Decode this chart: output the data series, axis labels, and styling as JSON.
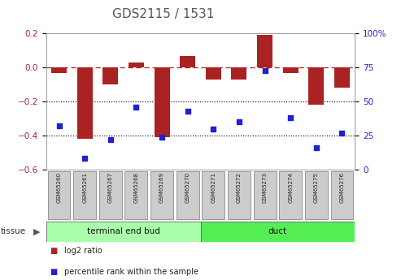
{
  "title": "GDS2115 / 1531",
  "samples": [
    "GSM65260",
    "GSM65261",
    "GSM65267",
    "GSM65268",
    "GSM65269",
    "GSM65270",
    "GSM65271",
    "GSM65272",
    "GSM65273",
    "GSM65274",
    "GSM65275",
    "GSM65276"
  ],
  "log2_ratio": [
    -0.03,
    -0.42,
    -0.1,
    0.03,
    -0.41,
    0.07,
    -0.07,
    -0.07,
    0.19,
    -0.03,
    -0.22,
    -0.12
  ],
  "percentile_rank": [
    32,
    8,
    22,
    46,
    24,
    43,
    30,
    35,
    73,
    38,
    16,
    27
  ],
  "bar_color": "#aa2222",
  "dot_color": "#2222cc",
  "ylim_left": [
    -0.6,
    0.2
  ],
  "ylim_right": [
    0,
    100
  ],
  "yticks_left": [
    -0.6,
    -0.4,
    -0.2,
    0.0,
    0.2
  ],
  "yticks_right": [
    0,
    25,
    50,
    75,
    100
  ],
  "ytick_labels_right": [
    "0",
    "25",
    "50",
    "75",
    "100%"
  ],
  "hline_y": 0.0,
  "dotted_lines": [
    -0.2,
    -0.4
  ],
  "groups": [
    {
      "label": "terminal end bud",
      "start": 0,
      "end": 6,
      "color": "#aaffaa"
    },
    {
      "label": "duct",
      "start": 6,
      "end": 12,
      "color": "#55ee55"
    }
  ],
  "tissue_label": "tissue",
  "legend": [
    {
      "label": "log2 ratio",
      "color": "#aa2222"
    },
    {
      "label": "percentile rank within the sample",
      "color": "#2222cc"
    }
  ],
  "bar_width": 0.6,
  "background_color": "#ffffff",
  "plot_bg_color": "#ffffff",
  "title_color": "#555555",
  "title_fontsize": 11
}
